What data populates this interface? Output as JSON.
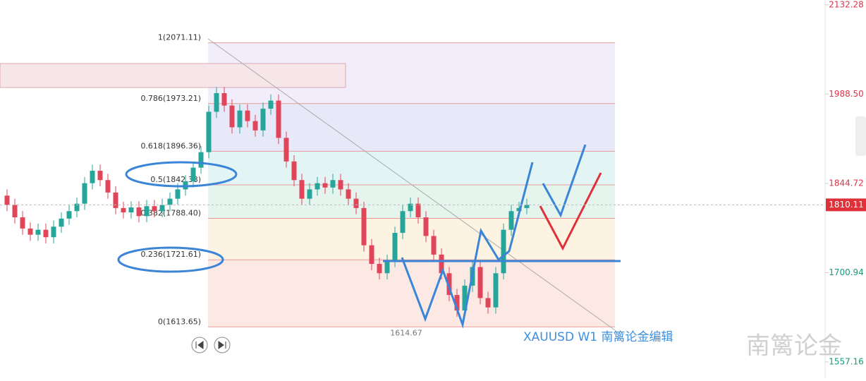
{
  "chart_data": {
    "type": "candlestick",
    "symbol_label": "XAUUSD  W1  南篱论金编辑",
    "watermark": "南篱论金",
    "ylim": [
      1531,
      2140
    ],
    "yticks": [
      2132.28,
      {
        "value": 1988.5,
        "label": "1988.50"
      },
      1844.72,
      1700.94,
      1557.16
    ],
    "last_price": 1810.11,
    "low_label": 1614.67,
    "up_color": "#26a69a",
    "down_color": "#e0455a",
    "fib_levels": [
      {
        "value": 2071.11,
        "label": "1(2071.11)"
      },
      {
        "value": 1973.21,
        "label": "0.786(1973.21)"
      },
      {
        "value": 1896.36,
        "label": "0.618(1896.36)"
      },
      {
        "value": 1842.38,
        "label": "0.5(1842.38)"
      },
      {
        "value": 1788.4,
        "label": "0.382(1788.40)"
      },
      {
        "value": 1721.61,
        "label": "0.236(1721.61)"
      },
      {
        "value": 1613.65,
        "label": "0(1613.65)"
      }
    ],
    "candles": [
      [
        1825,
        1835,
        1800,
        1810
      ],
      [
        1810,
        1820,
        1780,
        1790
      ],
      [
        1790,
        1800,
        1762,
        1772
      ],
      [
        1772,
        1782,
        1752,
        1762
      ],
      [
        1762,
        1780,
        1752,
        1770
      ],
      [
        1770,
        1780,
        1748,
        1758
      ],
      [
        1758,
        1785,
        1748,
        1775
      ],
      [
        1775,
        1798,
        1765,
        1788
      ],
      [
        1788,
        1810,
        1778,
        1800
      ],
      [
        1800,
        1822,
        1790,
        1812
      ],
      [
        1812,
        1855,
        1802,
        1845
      ],
      [
        1845,
        1875,
        1835,
        1865
      ],
      [
        1865,
        1875,
        1840,
        1850
      ],
      [
        1850,
        1860,
        1820,
        1830
      ],
      [
        1830,
        1840,
        1795,
        1805
      ],
      [
        1805,
        1815,
        1788,
        1798
      ],
      [
        1798,
        1816,
        1788,
        1806
      ],
      [
        1806,
        1816,
        1782,
        1792
      ],
      [
        1792,
        1818,
        1782,
        1808
      ],
      [
        1808,
        1818,
        1790,
        1800
      ],
      [
        1800,
        1820,
        1790,
        1810
      ],
      [
        1810,
        1830,
        1800,
        1820
      ],
      [
        1820,
        1845,
        1810,
        1835
      ],
      [
        1835,
        1858,
        1825,
        1848
      ],
      [
        1848,
        1880,
        1838,
        1870
      ],
      [
        1870,
        1905,
        1860,
        1895
      ],
      [
        1895,
        1970,
        1885,
        1960
      ],
      [
        1960,
        2000,
        1950,
        1990
      ],
      [
        1990,
        2000,
        1960,
        1970
      ],
      [
        1970,
        1980,
        1925,
        1935
      ],
      [
        1935,
        1972,
        1925,
        1962
      ],
      [
        1962,
        1972,
        1935,
        1945
      ],
      [
        1945,
        1955,
        1920,
        1930
      ],
      [
        1930,
        1975,
        1920,
        1965
      ],
      [
        1965,
        1988,
        1955,
        1978
      ],
      [
        1978,
        1988,
        1908,
        1918
      ],
      [
        1918,
        1928,
        1870,
        1880
      ],
      [
        1880,
        1890,
        1840,
        1850
      ],
      [
        1850,
        1860,
        1810,
        1820
      ],
      [
        1820,
        1845,
        1810,
        1835
      ],
      [
        1835,
        1855,
        1825,
        1845
      ],
      [
        1845,
        1855,
        1828,
        1838
      ],
      [
        1838,
        1860,
        1828,
        1850
      ],
      [
        1850,
        1860,
        1825,
        1835
      ],
      [
        1835,
        1845,
        1810,
        1820
      ],
      [
        1820,
        1830,
        1795,
        1805
      ],
      [
        1805,
        1815,
        1735,
        1745
      ],
      [
        1745,
        1755,
        1705,
        1715
      ],
      [
        1715,
        1725,
        1690,
        1700
      ],
      [
        1700,
        1730,
        1690,
        1720
      ],
      [
        1720,
        1775,
        1710,
        1765
      ],
      [
        1765,
        1810,
        1755,
        1800
      ],
      [
        1800,
        1822,
        1790,
        1812
      ],
      [
        1812,
        1822,
        1780,
        1790
      ],
      [
        1790,
        1800,
        1750,
        1760
      ],
      [
        1760,
        1770,
        1720,
        1730
      ],
      [
        1730,
        1740,
        1690,
        1700
      ],
      [
        1700,
        1710,
        1655,
        1665
      ],
      [
        1665,
        1675,
        1630,
        1640
      ],
      [
        1640,
        1690,
        1630,
        1680
      ],
      [
        1680,
        1720,
        1670,
        1710
      ],
      [
        1710,
        1720,
        1650,
        1660
      ],
      [
        1660,
        1670,
        1635,
        1645
      ],
      [
        1645,
        1710,
        1635,
        1700
      ],
      [
        1700,
        1780,
        1690,
        1770
      ],
      [
        1770,
        1810,
        1760,
        1800
      ],
      [
        1800,
        1815,
        1790,
        1805
      ],
      [
        1805,
        1820,
        1795,
        1810
      ]
    ]
  }
}
